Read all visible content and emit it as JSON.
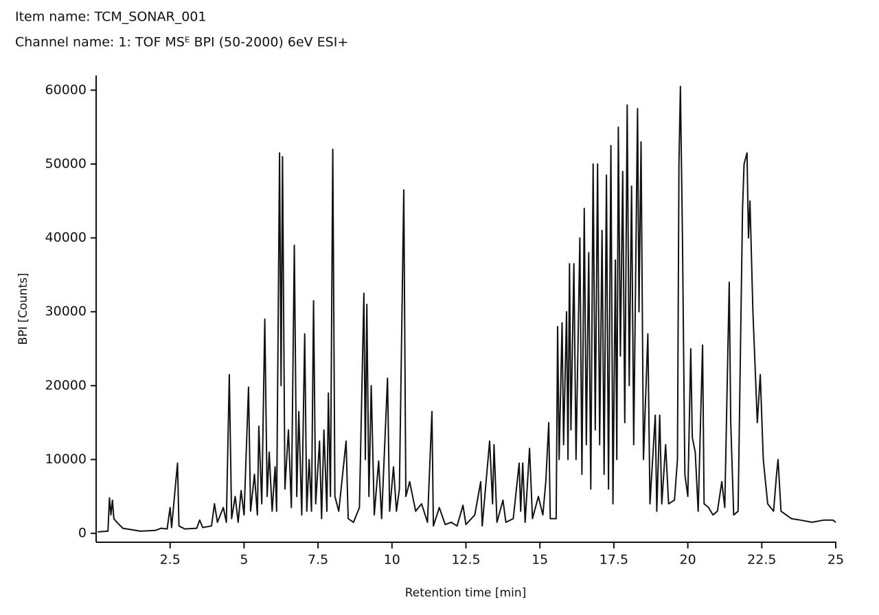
{
  "chart_data": {
    "type": "line",
    "title": "Item name: TCM_SONAR_001",
    "subtitle": "Channel name: 1: TOF MSᴱ BPI (50-2000) 6eV ESI+",
    "x_label": "Retention time [min]",
    "y_label": "BPI [Counts]",
    "color": "#111111",
    "xlim": [
      0,
      25
    ],
    "xticks": [
      2.5,
      5,
      7.5,
      10,
      12.5,
      15,
      17.5,
      20,
      22.5,
      25
    ],
    "ylim": [
      -1200,
      61800
    ],
    "yticks": [
      0,
      10000,
      20000,
      30000,
      40000,
      50000,
      60000
    ],
    "x": [
      0.05,
      0.4,
      0.45,
      0.5,
      0.55,
      0.6,
      0.7,
      0.9,
      1.5,
      2.0,
      2.2,
      2.4,
      2.5,
      2.55,
      2.75,
      2.8,
      3.0,
      3.4,
      3.5,
      3.6,
      3.9,
      4.0,
      4.1,
      4.3,
      4.4,
      4.5,
      4.58,
      4.7,
      4.8,
      4.9,
      5.0,
      5.15,
      5.22,
      5.35,
      5.45,
      5.5,
      5.6,
      5.7,
      5.78,
      5.85,
      5.95,
      6.05,
      6.1,
      6.2,
      6.25,
      6.3,
      6.38,
      6.5,
      6.6,
      6.7,
      6.78,
      6.85,
      6.95,
      7.05,
      7.12,
      7.2,
      7.28,
      7.35,
      7.42,
      7.55,
      7.62,
      7.7,
      7.8,
      7.85,
      7.92,
      8.0,
      8.07,
      8.2,
      8.45,
      8.52,
      8.7,
      8.9,
      9.05,
      9.1,
      9.15,
      9.22,
      9.3,
      9.4,
      9.55,
      9.65,
      9.85,
      9.92,
      10.05,
      10.15,
      10.25,
      10.4,
      10.47,
      10.6,
      10.8,
      11.0,
      11.2,
      11.35,
      11.4,
      11.6,
      11.8,
      12.0,
      12.2,
      12.4,
      12.5,
      12.8,
      13.0,
      13.05,
      13.3,
      13.4,
      13.45,
      13.55,
      13.75,
      13.85,
      14.1,
      14.3,
      14.35,
      14.42,
      14.5,
      14.65,
      14.75,
      14.95,
      15.1,
      15.2,
      15.3,
      15.35,
      15.55,
      15.6,
      15.65,
      15.75,
      15.8,
      15.9,
      15.95,
      16.0,
      16.05,
      16.15,
      16.22,
      16.35,
      16.42,
      16.5,
      16.57,
      16.65,
      16.72,
      16.8,
      16.87,
      16.95,
      17.02,
      17.1,
      17.17,
      17.25,
      17.32,
      17.4,
      17.47,
      17.55,
      17.6,
      17.65,
      17.72,
      17.8,
      17.87,
      17.95,
      18.02,
      18.1,
      18.17,
      18.3,
      18.35,
      18.42,
      18.5,
      18.65,
      18.72,
      18.9,
      18.95,
      19.05,
      19.12,
      19.25,
      19.35,
      19.55,
      19.65,
      19.7,
      19.75,
      19.82,
      19.9,
      20.0,
      20.1,
      20.15,
      20.25,
      20.35,
      20.5,
      20.55,
      20.7,
      20.85,
      21.0,
      21.15,
      21.25,
      21.4,
      21.45,
      21.55,
      21.7,
      21.85,
      21.9,
      22.0,
      22.05,
      22.1,
      22.2,
      22.35,
      22.45,
      22.55,
      22.7,
      22.9,
      23.0,
      23.05,
      23.15,
      23.5,
      23.8,
      24.2,
      24.6,
      24.9,
      25.0
    ],
    "values": [
      200,
      300,
      4800,
      2500,
      4500,
      2000,
      1500,
      700,
      300,
      400,
      700,
      600,
      3500,
      800,
      9500,
      1000,
      600,
      700,
      1800,
      800,
      1000,
      4000,
      1500,
      3500,
      1500,
      21500,
      2000,
      5000,
      1500,
      5800,
      2500,
      19800,
      3000,
      8000,
      2500,
      14500,
      4000,
      29000,
      5000,
      11000,
      3000,
      9000,
      3000,
      51500,
      20000,
      51000,
      6000,
      14000,
      3500,
      39000,
      5000,
      16500,
      2500,
      27000,
      3000,
      10000,
      3000,
      31500,
      4000,
      12500,
      2000,
      14000,
      3000,
      19000,
      5000,
      52000,
      5000,
      3000,
      12500,
      2000,
      1500,
      3500,
      32500,
      10000,
      31000,
      5000,
      20000,
      2500,
      9800,
      2000,
      21000,
      3000,
      9000,
      3000,
      6000,
      46500,
      5000,
      7000,
      3000,
      4000,
      1500,
      16500,
      1000,
      3500,
      1200,
      1500,
      1000,
      3800,
      1200,
      2500,
      7000,
      1000,
      12500,
      4000,
      12000,
      1500,
      4500,
      1500,
      2000,
      9500,
      3000,
      9500,
      1500,
      11500,
      2000,
      5000,
      2500,
      7000,
      15000,
      2000,
      2000,
      28000,
      10000,
      28500,
      12000,
      30000,
      10000,
      36500,
      14000,
      36500,
      10000,
      40000,
      8000,
      44000,
      12000,
      38000,
      6000,
      50000,
      14000,
      50000,
      12000,
      41000,
      8000,
      48500,
      6000,
      52500,
      4000,
      37000,
      10000,
      55000,
      24000,
      49000,
      15000,
      58000,
      20000,
      47000,
      12000,
      57500,
      30000,
      53000,
      10000,
      27000,
      4000,
      16000,
      3000,
      16000,
      4000,
      12000,
      4000,
      4500,
      10000,
      50000,
      60500,
      40000,
      8000,
      5000,
      25000,
      13000,
      11000,
      3000,
      25500,
      4000,
      3500,
      2500,
      3000,
      7000,
      3500,
      34000,
      15000,
      2500,
      3000,
      44000,
      50000,
      51500,
      40000,
      45000,
      30000,
      15000,
      21500,
      10000,
      4000,
      3000,
      8000,
      10000,
      3000,
      2000,
      1800,
      1500,
      1800,
      1800,
      1500
    ]
  }
}
